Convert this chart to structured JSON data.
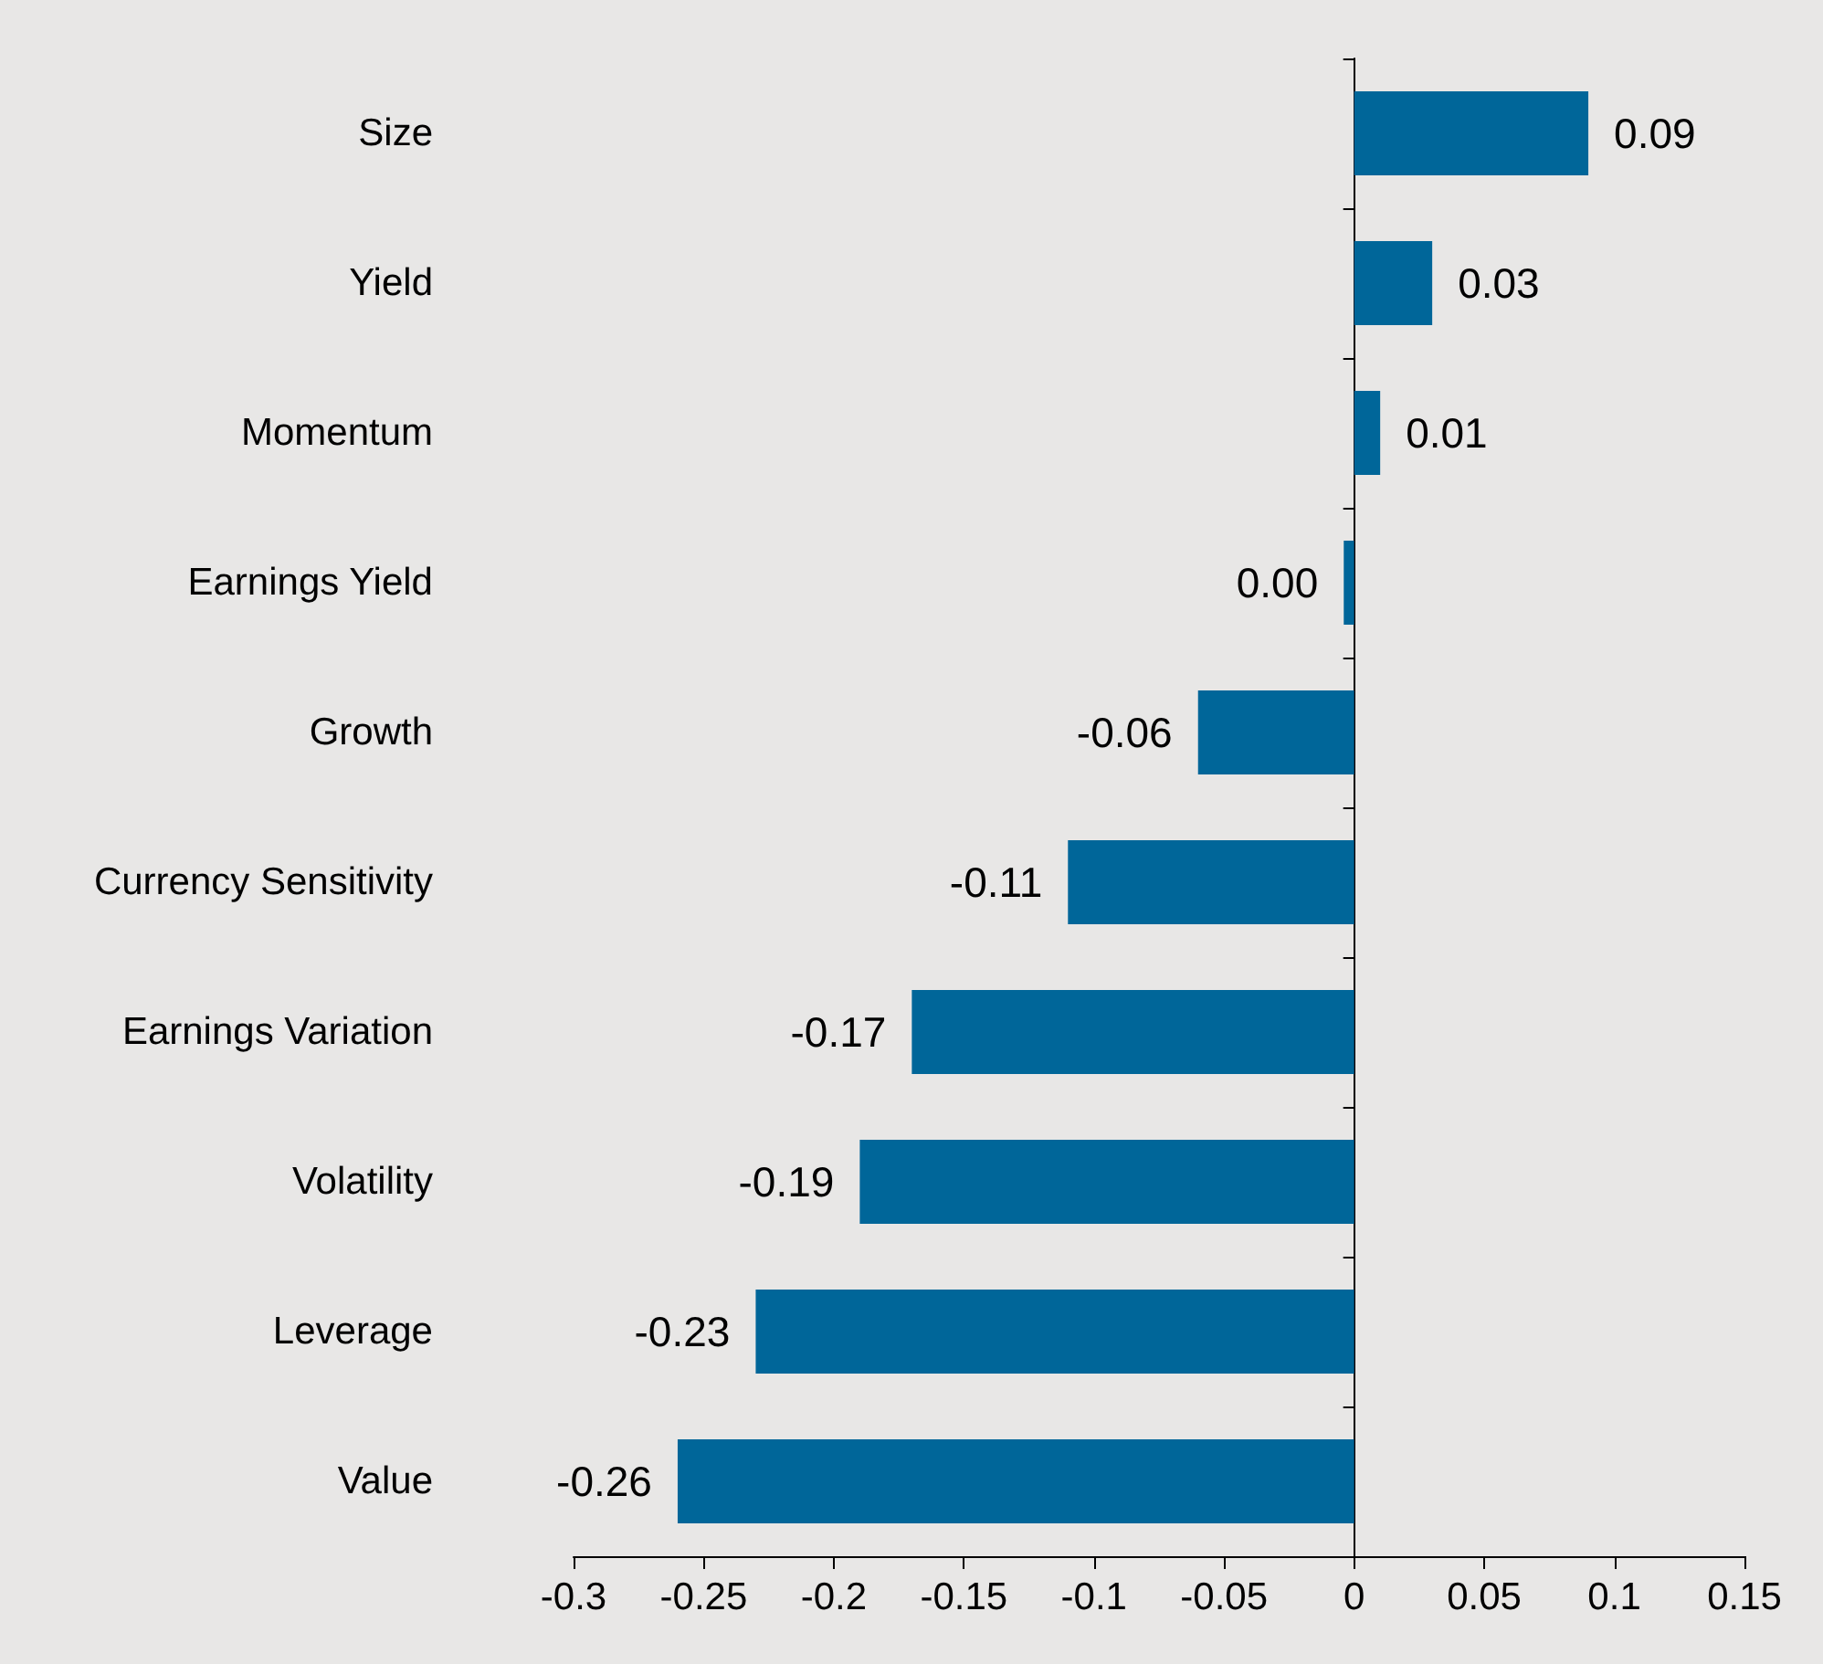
{
  "chart_data": {
    "type": "bar",
    "orientation": "horizontal",
    "categories": [
      "Size",
      "Yield",
      "Momentum",
      "Earnings Yield",
      "Growth",
      "Currency Sensitivity",
      "Earnings Variation",
      "Volatility",
      "Leverage",
      "Value"
    ],
    "values": [
      0.09,
      0.03,
      0.01,
      -0.004,
      -0.06,
      -0.11,
      -0.17,
      -0.19,
      -0.23,
      -0.26
    ],
    "value_labels": [
      "0.09",
      "0.03",
      "0.01",
      "0.00",
      "-0.06",
      "-0.11",
      "-0.17",
      "-0.19",
      "-0.23",
      "-0.26"
    ],
    "color": "#006699",
    "xlim": [
      -0.3,
      0.15
    ],
    "xticks": [
      -0.3,
      -0.25,
      -0.2,
      -0.15,
      -0.1,
      -0.05,
      0,
      0.05,
      0.1,
      0.15
    ]
  }
}
